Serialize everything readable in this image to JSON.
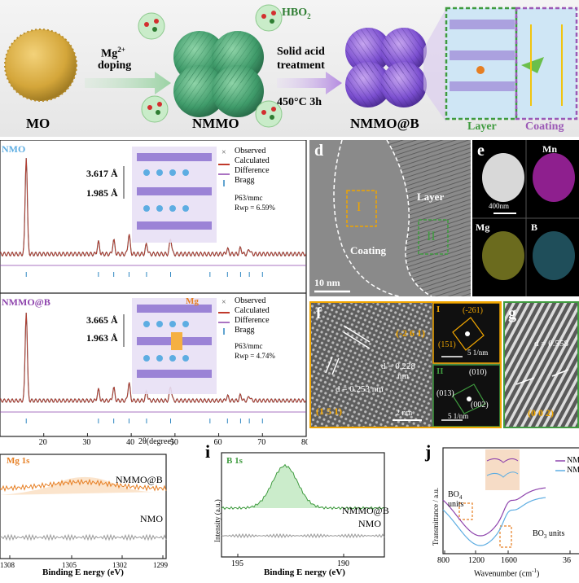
{
  "colors": {
    "observed": "#555555",
    "calculated": "#c0392b",
    "difference": "#8e44ad",
    "bragg": "#2e86c1",
    "accent_green": "#3f9b3f",
    "accent_purple": "#9b59b6",
    "orange": "#e67e22",
    "blue_label": "#5dade2",
    "mg_orange": "#d35400"
  },
  "top": {
    "mo_label": "MO",
    "doping_ion": "Mg",
    "doping_charge": "2+",
    "doping_word": "doping",
    "hbo2_label": "HBO",
    "hbo2_sub": "2",
    "nmmo_label": "NMMO",
    "solid_acid_line1": "Solid acid",
    "solid_acid_line2": "treatment",
    "temp_time": "450°C  3h",
    "nmmob_label": "NMMO@B",
    "layer_label": "Layer",
    "coating_label": "Coating"
  },
  "xrd_nmo": {
    "sample": "NMO",
    "legend": [
      "Observed",
      "Calculated",
      "Difference",
      "Bragg"
    ],
    "d1": "3.617 Å",
    "d2": "1.985 Å",
    "space_group": "P63/mmc",
    "rwp": "Rwp = 6.59%"
  },
  "xrd_nmmob": {
    "sample": "NMMO@B",
    "mg_tag": "Mg",
    "legend": [
      "Observed",
      "Calculated",
      "Difference",
      "Bragg"
    ],
    "d1": "3.665 Å",
    "d2": "1.963 Å",
    "space_group": "P63/mmc",
    "rwp": "Rwp = 4.74%"
  },
  "xrd_axis": {
    "xlabel": "2θ(degree)",
    "ticks": [
      "20",
      "30",
      "40",
      "50",
      "60",
      "70",
      "80"
    ]
  },
  "panel_d": {
    "letter": "d",
    "layer": "Layer",
    "coating": "Coating",
    "roman1": "I",
    "roman2": "II",
    "scale": "10 nm"
  },
  "panel_e": {
    "letter": "e",
    "mn": "Mn",
    "mg": "Mg",
    "b": "B",
    "scale": "400nm"
  },
  "panel_f": {
    "letter": "f",
    "plane1": "(-2 6 1)",
    "plane2": "(1 5 1)",
    "d1_line1": "d = 0.228",
    "d1_line2": "nm",
    "d2": "d = 0.253 nm",
    "scale": "2 nm",
    "fft1_roman": "I",
    "fft1_spot1": "(-261)",
    "fft1_spot2": "(151)",
    "fft1_scale": "5 1/nm",
    "fft2_roman": "II",
    "fft2_spot1": "(010)",
    "fft2_spot2": "(013)",
    "fft2_spot3": "(002)",
    "fft2_scale": "5 1/nm"
  },
  "panel_g": {
    "letter": "g",
    "d": "d = 0.558",
    "plane": "(0 0 2)"
  },
  "xps_mg": {
    "title": "Mg 1s",
    "top_label": "NMMO@B",
    "bottom_label": "NMO",
    "xlabel": "Binding E nergy (eV)",
    "ticks": [
      "1308",
      "1305",
      "1302",
      "1299"
    ]
  },
  "xps_b": {
    "letter": "i",
    "title": "B 1s",
    "ylabel": "Intensity (a.u.)",
    "top_label": "NMMO@B",
    "bottom_label": "NMO",
    "xlabel": "Binding E nergy (eV)",
    "ticks": [
      "195",
      "190"
    ]
  },
  "ftir": {
    "letter": "j",
    "ylabel": "Transmittance / a.u.",
    "bo4_line1": "BO",
    "bo4_sub": "4",
    "bo4_line2": "units",
    "bo3": "BO",
    "bo3_sub": "3",
    "bo3_units": " units",
    "legend1": "NMM",
    "legend2": "NMO",
    "xlabel": "Wavenumber (cm",
    "xlabel_sup": "-1",
    "xlabel_end": ")",
    "ticks": [
      "800",
      "1200",
      "1600",
      "36"
    ]
  }
}
